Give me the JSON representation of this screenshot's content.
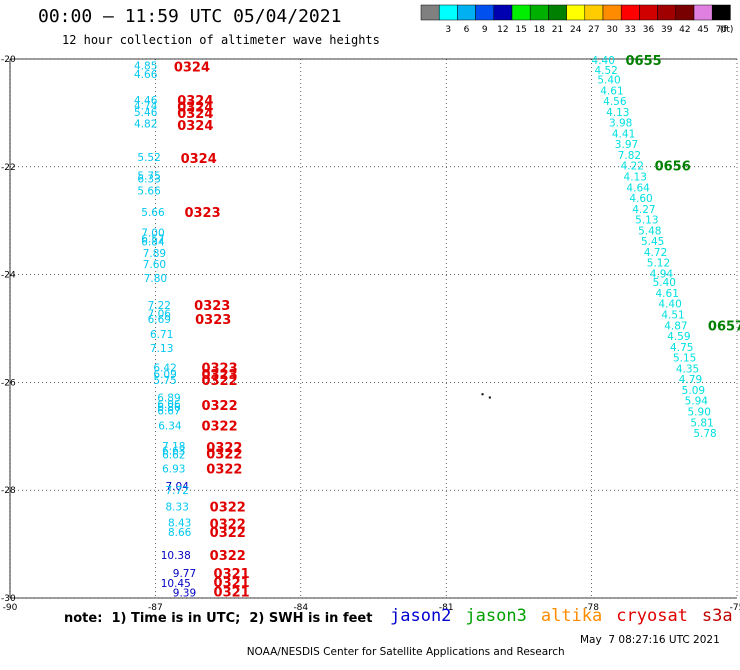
{
  "header": {
    "title": "00:00 – 11:59 UTC 05/04/2021",
    "subtitle": "12 hour collection of altimeter wave heights"
  },
  "legend": {
    "unit": "(ft)",
    "bins": [
      {
        "label": "",
        "color": "#808080"
      },
      {
        "label": "3",
        "color": "#00ffff"
      },
      {
        "label": "6",
        "color": "#00b0f0"
      },
      {
        "label": "9",
        "color": "#0050f0"
      },
      {
        "label": "12",
        "color": "#0000b0"
      },
      {
        "label": "15",
        "color": "#00ee00"
      },
      {
        "label": "18",
        "color": "#00b000"
      },
      {
        "label": "21",
        "color": "#008000"
      },
      {
        "label": "24",
        "color": "#ffff00"
      },
      {
        "label": "27",
        "color": "#ffcc00"
      },
      {
        "label": "30",
        "color": "#ff8c00"
      },
      {
        "label": "33",
        "color": "#ff0000"
      },
      {
        "label": "36",
        "color": "#d00000"
      },
      {
        "label": "39",
        "color": "#a00000"
      },
      {
        "label": "42",
        "color": "#780000"
      },
      {
        "label": "45",
        "color": "#e080e0"
      },
      {
        "label": "70",
        "color": "#000000"
      }
    ]
  },
  "axes": {
    "lon_min": -90,
    "lon_max": -75,
    "lat_min": -30,
    "lat_max": -20,
    "lat_ticks": [
      "-20",
      "-22",
      "-24",
      "-26",
      "-28",
      "-30"
    ],
    "lon_ticks": [
      "-90",
      "-87",
      "-84",
      "-81",
      "-78",
      "-75"
    ]
  },
  "colors": {
    "cyan": "#00c8f0",
    "cyan_light": "#00e0e0",
    "blue": "#0000c0",
    "red": "#e00000",
    "green": "#008000"
  },
  "track_west": [
    {
      "lat": -20.12,
      "lon": -87.2,
      "text": "4.85",
      "c": "cyan"
    },
    {
      "lat": -20.28,
      "lon": -87.2,
      "text": "4.66",
      "c": "cyan"
    },
    {
      "lat": -20.76,
      "lon": -87.2,
      "text": "4.46",
      "c": "cyan"
    },
    {
      "lat": -20.86,
      "lon": -87.2,
      "text": "4.74",
      "c": "cyan"
    },
    {
      "lat": -20.98,
      "lon": -87.2,
      "text": "5.46",
      "c": "cyan"
    },
    {
      "lat": -21.2,
      "lon": -87.2,
      "text": "4.82",
      "c": "cyan"
    },
    {
      "lat": -21.82,
      "lon": -87.13,
      "text": "5.52",
      "c": "cyan"
    },
    {
      "lat": -22.16,
      "lon": -87.13,
      "text": "5.75",
      "c": "cyan"
    },
    {
      "lat": -22.22,
      "lon": -87.13,
      "text": "6.33",
      "c": "cyan"
    },
    {
      "lat": -22.44,
      "lon": -87.13,
      "text": "5.66",
      "c": "cyan"
    },
    {
      "lat": -22.84,
      "lon": -87.05,
      "text": "5.66",
      "c": "cyan"
    },
    {
      "lat": -23.22,
      "lon": -87.05,
      "text": "7.00",
      "c": "cyan"
    },
    {
      "lat": -23.33,
      "lon": -87.05,
      "text": "6.57",
      "c": "cyan"
    },
    {
      "lat": -23.39,
      "lon": -87.05,
      "text": "6.84",
      "c": "cyan"
    },
    {
      "lat": -23.6,
      "lon": -87.02,
      "text": "7.89",
      "c": "cyan"
    },
    {
      "lat": -23.8,
      "lon": -87.02,
      "text": "7.60",
      "c": "cyan"
    },
    {
      "lat": -24.06,
      "lon": -87.0,
      "text": "7.80",
      "c": "cyan"
    },
    {
      "lat": -24.56,
      "lon": -86.92,
      "text": "7.22",
      "c": "cyan"
    },
    {
      "lat": -24.72,
      "lon": -86.92,
      "text": "7.06",
      "c": "cyan"
    },
    {
      "lat": -24.82,
      "lon": -86.92,
      "text": "6.69",
      "c": "cyan"
    },
    {
      "lat": -25.1,
      "lon": -86.87,
      "text": "6.71",
      "c": "cyan"
    },
    {
      "lat": -25.36,
      "lon": -86.87,
      "text": "7.13",
      "c": "cyan"
    },
    {
      "lat": -25.72,
      "lon": -86.8,
      "text": "6.42",
      "c": "cyan"
    },
    {
      "lat": -25.84,
      "lon": -86.8,
      "text": "6.09",
      "c": "cyan"
    },
    {
      "lat": -25.96,
      "lon": -86.8,
      "text": "5.75",
      "c": "cyan"
    },
    {
      "lat": -26.28,
      "lon": -86.72,
      "text": "6.89",
      "c": "cyan"
    },
    {
      "lat": -26.4,
      "lon": -86.72,
      "text": "6.06",
      "c": "cyan"
    },
    {
      "lat": -26.46,
      "lon": -86.72,
      "text": "6.86",
      "c": "cyan"
    },
    {
      "lat": -26.52,
      "lon": -86.72,
      "text": "6.67",
      "c": "cyan"
    },
    {
      "lat": -26.8,
      "lon": -86.7,
      "text": "6.34",
      "c": "cyan"
    },
    {
      "lat": -27.18,
      "lon": -86.62,
      "text": "7.18",
      "c": "cyan"
    },
    {
      "lat": -27.26,
      "lon": -86.62,
      "text": "6.63",
      "c": "cyan"
    },
    {
      "lat": -27.34,
      "lon": -86.62,
      "text": "6.62",
      "c": "cyan"
    },
    {
      "lat": -27.6,
      "lon": -86.62,
      "text": "6.93",
      "c": "cyan"
    },
    {
      "lat": -27.92,
      "lon": -86.55,
      "text": "7.04",
      "c": "blue"
    },
    {
      "lat": -28.0,
      "lon": -86.55,
      "text": "7.72",
      "c": "cyan"
    },
    {
      "lat": -28.3,
      "lon": -86.55,
      "text": "8.33",
      "c": "cyan"
    },
    {
      "lat": -28.6,
      "lon": -86.5,
      "text": "8.43",
      "c": "cyan"
    },
    {
      "lat": -28.78,
      "lon": -86.5,
      "text": "8.66",
      "c": "cyan"
    },
    {
      "lat": -29.2,
      "lon": -86.58,
      "text": "10.38",
      "c": "blue"
    },
    {
      "lat": -29.54,
      "lon": -86.4,
      "text": "9.77",
      "c": "blue"
    },
    {
      "lat": -29.72,
      "lon": -86.58,
      "text": "10.45",
      "c": "blue"
    },
    {
      "lat": -29.9,
      "lon": -86.4,
      "text": "9.39",
      "c": "blue"
    }
  ],
  "times_west": [
    {
      "lat": -20.14,
      "lon": -86.62,
      "text": "0324"
    },
    {
      "lat": -20.76,
      "lon": -86.55,
      "text": "0324"
    },
    {
      "lat": -20.88,
      "lon": -86.55,
      "text": "0324"
    },
    {
      "lat": -21.0,
      "lon": -86.55,
      "text": "0324"
    },
    {
      "lat": -21.22,
      "lon": -86.55,
      "text": "0324"
    },
    {
      "lat": -21.84,
      "lon": -86.48,
      "text": "0324"
    },
    {
      "lat": -22.84,
      "lon": -86.4,
      "text": "0323"
    },
    {
      "lat": -24.56,
      "lon": -86.2,
      "text": "0323"
    },
    {
      "lat": -24.82,
      "lon": -86.18,
      "text": "0323"
    },
    {
      "lat": -25.72,
      "lon": -86.05,
      "text": "0323"
    },
    {
      "lat": -25.84,
      "lon": -86.05,
      "text": "0323"
    },
    {
      "lat": -25.96,
      "lon": -86.05,
      "text": "0322"
    },
    {
      "lat": -26.42,
      "lon": -86.05,
      "text": "0322"
    },
    {
      "lat": -26.8,
      "lon": -86.05,
      "text": "0322"
    },
    {
      "lat": -27.2,
      "lon": -85.95,
      "text": "0322"
    },
    {
      "lat": -27.32,
      "lon": -85.95,
      "text": "0322"
    },
    {
      "lat": -27.6,
      "lon": -85.95,
      "text": "0322"
    },
    {
      "lat": -28.3,
      "lon": -85.88,
      "text": "0322"
    },
    {
      "lat": -28.62,
      "lon": -85.88,
      "text": "0322"
    },
    {
      "lat": -28.78,
      "lon": -85.88,
      "text": "0322"
    },
    {
      "lat": -29.2,
      "lon": -85.88,
      "text": "0322"
    },
    {
      "lat": -29.54,
      "lon": -85.8,
      "text": "0321"
    },
    {
      "lat": -29.7,
      "lon": -85.8,
      "text": "0321"
    },
    {
      "lat": -29.88,
      "lon": -85.8,
      "text": "0321"
    }
  ],
  "track_east": [
    {
      "lat": -20.02,
      "lon": -77.76,
      "text": "4.40"
    },
    {
      "lat": -20.2,
      "lon": -77.7,
      "text": "4.52"
    },
    {
      "lat": -20.38,
      "lon": -77.64,
      "text": "5.40"
    },
    {
      "lat": -20.58,
      "lon": -77.58,
      "text": "4.61"
    },
    {
      "lat": -20.78,
      "lon": -77.52,
      "text": "4.56"
    },
    {
      "lat": -20.98,
      "lon": -77.46,
      "text": "4.13"
    },
    {
      "lat": -21.18,
      "lon": -77.4,
      "text": "3.98"
    },
    {
      "lat": -21.38,
      "lon": -77.34,
      "text": "4.41"
    },
    {
      "lat": -21.58,
      "lon": -77.28,
      "text": "3.97"
    },
    {
      "lat": -21.78,
      "lon": -77.22,
      "text": "7.82"
    },
    {
      "lat": -21.98,
      "lon": -77.16,
      "text": "4.22"
    },
    {
      "lat": -22.18,
      "lon": -77.1,
      "text": "4.13"
    },
    {
      "lat": -22.38,
      "lon": -77.04,
      "text": "4.64"
    },
    {
      "lat": -22.58,
      "lon": -76.98,
      "text": "4.60"
    },
    {
      "lat": -22.78,
      "lon": -76.92,
      "text": "4.27"
    },
    {
      "lat": -22.98,
      "lon": -76.86,
      "text": "5.13"
    },
    {
      "lat": -23.18,
      "lon": -76.8,
      "text": "5.48"
    },
    {
      "lat": -23.38,
      "lon": -76.74,
      "text": "5.45"
    },
    {
      "lat": -23.58,
      "lon": -76.68,
      "text": "4.72"
    },
    {
      "lat": -23.78,
      "lon": -76.62,
      "text": "5.12"
    },
    {
      "lat": -23.98,
      "lon": -76.56,
      "text": "4.94"
    },
    {
      "lat": -24.14,
      "lon": -76.5,
      "text": "5.40"
    },
    {
      "lat": -24.34,
      "lon": -76.44,
      "text": "4.61"
    },
    {
      "lat": -24.54,
      "lon": -76.38,
      "text": "4.40"
    },
    {
      "lat": -24.74,
      "lon": -76.32,
      "text": "4.51"
    },
    {
      "lat": -24.94,
      "lon": -76.26,
      "text": "4.87"
    },
    {
      "lat": -25.14,
      "lon": -76.2,
      "text": "4.59"
    },
    {
      "lat": -25.34,
      "lon": -76.14,
      "text": "4.75"
    },
    {
      "lat": -25.54,
      "lon": -76.08,
      "text": "5.15"
    },
    {
      "lat": -25.74,
      "lon": -76.02,
      "text": "4.35"
    },
    {
      "lat": -25.94,
      "lon": -75.96,
      "text": "4.79"
    },
    {
      "lat": -26.14,
      "lon": -75.9,
      "text": "5.09"
    },
    {
      "lat": -26.34,
      "lon": -75.84,
      "text": "5.94"
    },
    {
      "lat": -26.54,
      "lon": -75.78,
      "text": "5.90"
    },
    {
      "lat": -26.74,
      "lon": -75.72,
      "text": "5.81"
    },
    {
      "lat": -26.94,
      "lon": -75.66,
      "text": "5.78"
    }
  ],
  "times_east": [
    {
      "lat": -20.02,
      "lon": -77.3,
      "text": "0655"
    },
    {
      "lat": -21.98,
      "lon": -76.7,
      "text": "0656"
    },
    {
      "lat": -24.94,
      "lon": -75.6,
      "text": "0657"
    }
  ],
  "markers": [
    {
      "lat": -26.22,
      "lon": -80.25
    },
    {
      "lat": -26.28,
      "lon": -80.1
    }
  ],
  "note": "note:  1) Time is in UTC;  2) SWH is in feet",
  "missions": [
    {
      "name": "jason2",
      "color": "#0000d0"
    },
    {
      "name": "jason3",
      "color": "#00a000"
    },
    {
      "name": "altika",
      "color": "#ff8c00"
    },
    {
      "name": "cryosat",
      "color": "#e00000"
    },
    {
      "name": "s3a",
      "color": "#c00000"
    }
  ],
  "footer": {
    "center": "NOAA/NESDIS Center for Satellite Applications and Research",
    "timestamp": "May  7 08:27:16 UTC 2021"
  }
}
